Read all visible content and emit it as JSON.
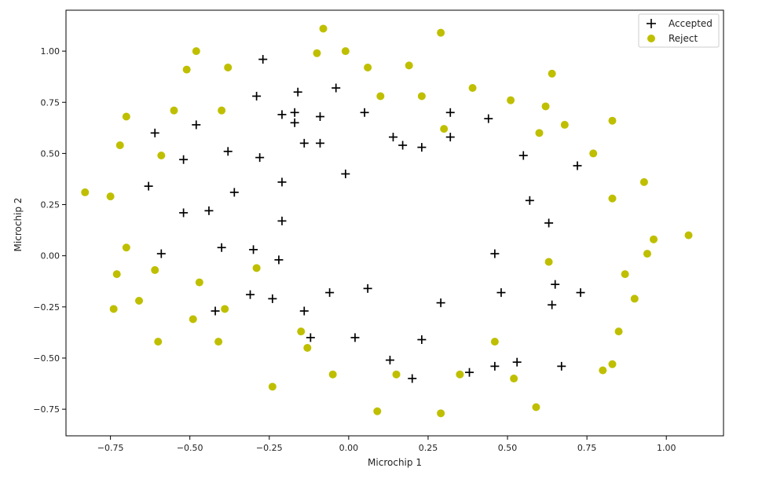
{
  "chart_data": {
    "type": "scatter",
    "title": "",
    "xlabel": "Microchip 1",
    "ylabel": "Microchip 2",
    "xlim": [
      -0.89,
      1.18
    ],
    "ylim": [
      -0.88,
      1.2
    ],
    "x_ticks": [
      {
        "value": -0.75,
        "label": "−0.75"
      },
      {
        "value": -0.5,
        "label": "−0.50"
      },
      {
        "value": -0.25,
        "label": "−0.25"
      },
      {
        "value": 0.0,
        "label": "0.00"
      },
      {
        "value": 0.25,
        "label": "0.25"
      },
      {
        "value": 0.5,
        "label": "0.50"
      },
      {
        "value": 0.75,
        "label": "0.75"
      },
      {
        "value": 1.0,
        "label": "1.00"
      }
    ],
    "y_ticks": [
      {
        "value": -0.75,
        "label": "−0.75"
      },
      {
        "value": -0.5,
        "label": "−0.50"
      },
      {
        "value": -0.25,
        "label": "−0.25"
      },
      {
        "value": 0.0,
        "label": "0.00"
      },
      {
        "value": 0.25,
        "label": "0.25"
      },
      {
        "value": 0.5,
        "label": "0.50"
      },
      {
        "value": 0.75,
        "label": "0.75"
      },
      {
        "value": 1.0,
        "label": "1.00"
      }
    ],
    "grid": false,
    "legend": {
      "position": "top-right"
    },
    "series": [
      {
        "name": "Accepted",
        "marker": "plus",
        "color": "#000000",
        "points": [
          [
            -0.27,
            0.96
          ],
          [
            -0.29,
            0.78
          ],
          [
            -0.16,
            0.8
          ],
          [
            -0.04,
            0.82
          ],
          [
            -0.21,
            0.69
          ],
          [
            -0.17,
            0.7
          ],
          [
            -0.17,
            0.65
          ],
          [
            -0.09,
            0.68
          ],
          [
            0.05,
            0.7
          ],
          [
            -0.48,
            0.64
          ],
          [
            -0.61,
            0.6
          ],
          [
            -0.52,
            0.47
          ],
          [
            -0.38,
            0.51
          ],
          [
            -0.28,
            0.48
          ],
          [
            -0.14,
            0.55
          ],
          [
            -0.09,
            0.55
          ],
          [
            -0.63,
            0.34
          ],
          [
            -0.52,
            0.21
          ],
          [
            -0.44,
            0.22
          ],
          [
            -0.36,
            0.31
          ],
          [
            -0.21,
            0.36
          ],
          [
            -0.01,
            0.4
          ],
          [
            -0.21,
            0.17
          ],
          [
            -0.59,
            0.01
          ],
          [
            -0.4,
            0.04
          ],
          [
            -0.3,
            0.03
          ],
          [
            -0.22,
            -0.02
          ],
          [
            -0.31,
            -0.19
          ],
          [
            -0.24,
            -0.21
          ],
          [
            -0.42,
            -0.27
          ],
          [
            -0.14,
            -0.27
          ],
          [
            -0.12,
            -0.4
          ],
          [
            -0.06,
            -0.18
          ],
          [
            0.06,
            -0.16
          ],
          [
            0.02,
            -0.4
          ],
          [
            0.13,
            -0.51
          ],
          [
            0.2,
            -0.6
          ],
          [
            0.23,
            -0.41
          ],
          [
            0.29,
            -0.23
          ],
          [
            0.14,
            0.58
          ],
          [
            0.17,
            0.54
          ],
          [
            0.23,
            0.53
          ],
          [
            0.32,
            0.7
          ],
          [
            0.32,
            0.58
          ],
          [
            0.44,
            0.67
          ],
          [
            0.55,
            0.49
          ],
          [
            0.57,
            0.27
          ],
          [
            0.63,
            0.16
          ],
          [
            0.72,
            0.44
          ],
          [
            0.46,
            0.01
          ],
          [
            0.48,
            -0.18
          ],
          [
            0.65,
            -0.14
          ],
          [
            0.64,
            -0.24
          ],
          [
            0.73,
            -0.18
          ],
          [
            0.38,
            -0.57
          ],
          [
            0.46,
            -0.54
          ],
          [
            0.53,
            -0.52
          ],
          [
            0.67,
            -0.54
          ]
        ]
      },
      {
        "name": "Reject",
        "marker": "circle",
        "color": "#bfbf00",
        "points": [
          [
            -0.08,
            1.11
          ],
          [
            -0.48,
            1.0
          ],
          [
            -0.1,
            0.99
          ],
          [
            -0.01,
            1.0
          ],
          [
            0.29,
            1.09
          ],
          [
            -0.51,
            0.91
          ],
          [
            -0.38,
            0.92
          ],
          [
            0.06,
            0.92
          ],
          [
            0.19,
            0.93
          ],
          [
            -0.55,
            0.71
          ],
          [
            -0.4,
            0.71
          ],
          [
            0.1,
            0.78
          ],
          [
            0.23,
            0.78
          ],
          [
            -0.7,
            0.68
          ],
          [
            0.39,
            0.82
          ],
          [
            0.51,
            0.76
          ],
          [
            0.62,
            0.73
          ],
          [
            0.64,
            0.89
          ],
          [
            -0.72,
            0.54
          ],
          [
            -0.59,
            0.49
          ],
          [
            0.3,
            0.62
          ],
          [
            0.6,
            0.6
          ],
          [
            0.68,
            0.64
          ],
          [
            0.77,
            0.5
          ],
          [
            0.83,
            0.66
          ],
          [
            -0.83,
            0.31
          ],
          [
            -0.75,
            0.29
          ],
          [
            0.93,
            0.36
          ],
          [
            0.83,
            0.28
          ],
          [
            -0.7,
            0.04
          ],
          [
            0.96,
            0.08
          ],
          [
            1.07,
            0.1
          ],
          [
            0.94,
            0.01
          ],
          [
            -0.73,
            -0.09
          ],
          [
            -0.61,
            -0.07
          ],
          [
            -0.47,
            -0.13
          ],
          [
            -0.29,
            -0.06
          ],
          [
            0.63,
            -0.03
          ],
          [
            0.87,
            -0.09
          ],
          [
            -0.66,
            -0.22
          ],
          [
            -0.74,
            -0.26
          ],
          [
            -0.49,
            -0.31
          ],
          [
            -0.39,
            -0.26
          ],
          [
            0.9,
            -0.21
          ],
          [
            -0.6,
            -0.42
          ],
          [
            -0.41,
            -0.42
          ],
          [
            -0.15,
            -0.37
          ],
          [
            -0.13,
            -0.45
          ],
          [
            0.46,
            -0.42
          ],
          [
            0.85,
            -0.37
          ],
          [
            -0.24,
            -0.64
          ],
          [
            -0.05,
            -0.58
          ],
          [
            0.15,
            -0.58
          ],
          [
            0.35,
            -0.58
          ],
          [
            0.52,
            -0.6
          ],
          [
            0.8,
            -0.56
          ],
          [
            0.83,
            -0.53
          ],
          [
            0.09,
            -0.76
          ],
          [
            0.29,
            -0.77
          ],
          [
            0.59,
            -0.74
          ]
        ]
      }
    ]
  }
}
